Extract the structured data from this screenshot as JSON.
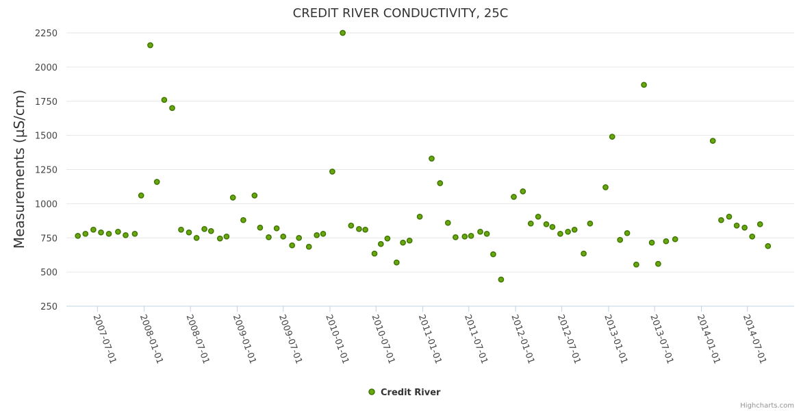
{
  "chart_data": {
    "type": "scatter",
    "title": "CREDIT RIVER CONDUCTIVITY, 25C",
    "ylabel": "Measurements (µS/cm)",
    "xlabel": "",
    "ylim": [
      250,
      2250
    ],
    "yticks": [
      250,
      500,
      750,
      1000,
      1250,
      1500,
      1750,
      2000,
      2250
    ],
    "xrange": [
      "2007-03-01",
      "2015-01-01"
    ],
    "xticks": [
      "2007-07-01",
      "2008-01-01",
      "2008-07-01",
      "2009-01-01",
      "2009-07-01",
      "2010-01-01",
      "2010-07-01",
      "2011-01-01",
      "2011-07-01",
      "2012-01-01",
      "2012-07-01",
      "2013-01-01",
      "2013-07-01",
      "2014-01-01",
      "2014-07-01"
    ],
    "grid": true,
    "legend_position": "bottom-center",
    "series": [
      {
        "name": "Credit River",
        "color": "#6aa610",
        "points": [
          [
            "2007-04-15",
            765
          ],
          [
            "2007-05-15",
            780
          ],
          [
            "2007-06-15",
            810
          ],
          [
            "2007-07-15",
            790
          ],
          [
            "2007-08-15",
            780
          ],
          [
            "2007-09-20",
            795
          ],
          [
            "2007-10-20",
            770
          ],
          [
            "2007-11-25",
            780
          ],
          [
            "2007-12-20",
            1060
          ],
          [
            "2008-01-25",
            2160
          ],
          [
            "2008-02-20",
            1160
          ],
          [
            "2008-03-20",
            1760
          ],
          [
            "2008-04-20",
            1700
          ],
          [
            "2008-05-25",
            810
          ],
          [
            "2008-06-25",
            790
          ],
          [
            "2008-07-25",
            750
          ],
          [
            "2008-08-25",
            815
          ],
          [
            "2008-09-20",
            800
          ],
          [
            "2008-10-25",
            745
          ],
          [
            "2008-11-20",
            760
          ],
          [
            "2008-12-15",
            1045
          ],
          [
            "2009-01-25",
            880
          ],
          [
            "2009-03-10",
            1060
          ],
          [
            "2009-04-01",
            825
          ],
          [
            "2009-05-05",
            755
          ],
          [
            "2009-06-05",
            820
          ],
          [
            "2009-07-01",
            760
          ],
          [
            "2009-08-05",
            695
          ],
          [
            "2009-09-01",
            750
          ],
          [
            "2009-10-10",
            685
          ],
          [
            "2009-11-10",
            770
          ],
          [
            "2009-12-05",
            780
          ],
          [
            "2010-01-10",
            1235
          ],
          [
            "2010-02-20",
            2250
          ],
          [
            "2010-03-25",
            840
          ],
          [
            "2010-04-25",
            815
          ],
          [
            "2010-05-20",
            810
          ],
          [
            "2010-06-25",
            635
          ],
          [
            "2010-07-20",
            705
          ],
          [
            "2010-08-15",
            745
          ],
          [
            "2010-09-20",
            570
          ],
          [
            "2010-10-15",
            715
          ],
          [
            "2010-11-10",
            730
          ],
          [
            "2010-12-20",
            905
          ],
          [
            "2011-02-05",
            1330
          ],
          [
            "2011-03-10",
            1150
          ],
          [
            "2011-04-10",
            860
          ],
          [
            "2011-05-10",
            755
          ],
          [
            "2011-06-15",
            760
          ],
          [
            "2011-07-10",
            765
          ],
          [
            "2011-08-15",
            795
          ],
          [
            "2011-09-10",
            780
          ],
          [
            "2011-10-05",
            630
          ],
          [
            "2011-11-05",
            445
          ],
          [
            "2011-12-25",
            1050
          ],
          [
            "2012-01-30",
            1090
          ],
          [
            "2012-03-01",
            855
          ],
          [
            "2012-03-30",
            905
          ],
          [
            "2012-05-01",
            850
          ],
          [
            "2012-05-25",
            830
          ],
          [
            "2012-06-25",
            780
          ],
          [
            "2012-07-25",
            795
          ],
          [
            "2012-08-20",
            810
          ],
          [
            "2012-09-25",
            635
          ],
          [
            "2012-10-20",
            855
          ],
          [
            "2012-12-20",
            1120
          ],
          [
            "2013-01-15",
            1490
          ],
          [
            "2013-02-15",
            735
          ],
          [
            "2013-03-15",
            785
          ],
          [
            "2013-04-20",
            555
          ],
          [
            "2013-05-20",
            1870
          ],
          [
            "2013-06-20",
            715
          ],
          [
            "2013-07-15",
            560
          ],
          [
            "2013-08-15",
            725
          ],
          [
            "2013-09-20",
            740
          ],
          [
            "2014-02-15",
            1460
          ],
          [
            "2014-03-20",
            880
          ],
          [
            "2014-04-20",
            905
          ],
          [
            "2014-05-20",
            840
          ],
          [
            "2014-06-20",
            825
          ],
          [
            "2014-07-20",
            760
          ],
          [
            "2014-08-20",
            850
          ],
          [
            "2014-09-20",
            690
          ]
        ]
      }
    ]
  },
  "credits": "Highcharts.com"
}
